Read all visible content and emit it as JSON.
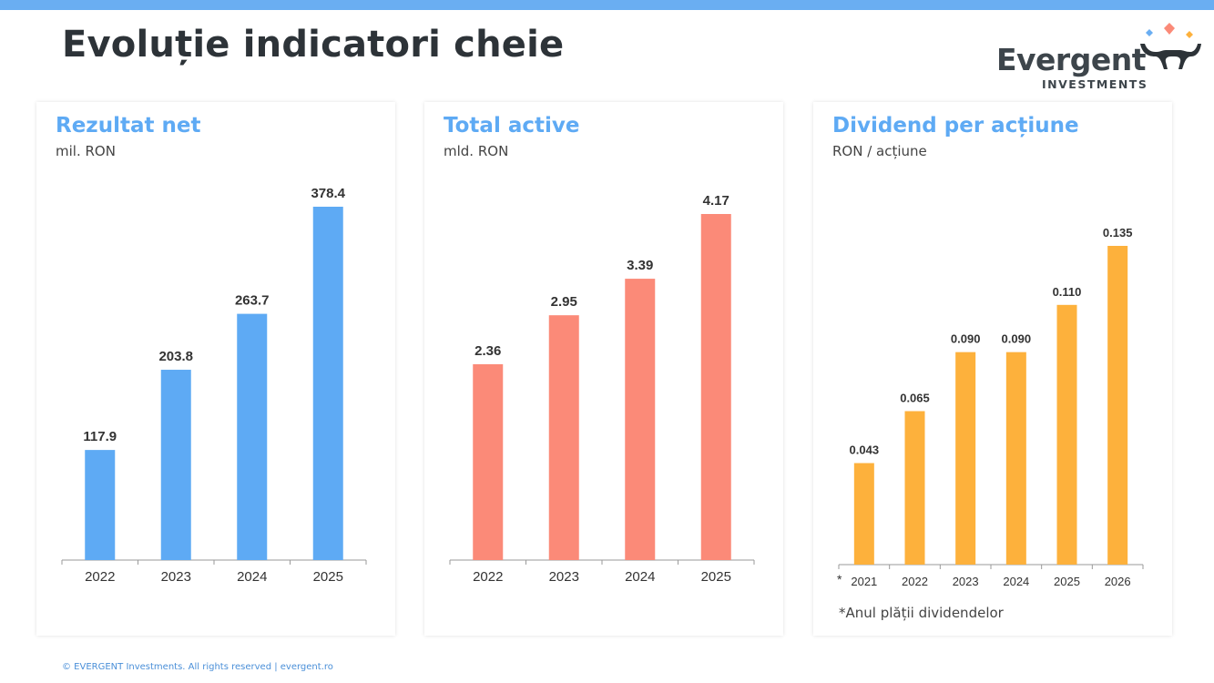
{
  "header": {
    "title": "Evoluție indicatori cheie"
  },
  "logo": {
    "name": "Evergent",
    "subtitle": "INVESTMENTS"
  },
  "colors": {
    "accent": "#6aaef2",
    "blue": "#5eaaf4",
    "salmon": "#fb8a78",
    "orange": "#fdb13c"
  },
  "chart_data": [
    {
      "type": "bar",
      "title": "Rezultat net",
      "unit": "mil. RON",
      "categories": [
        "2022",
        "2023",
        "2024",
        "2025"
      ],
      "values": [
        117.9,
        203.8,
        263.7,
        378.4
      ],
      "value_labels": [
        "117.9",
        "203.8",
        "263.7",
        "378.4"
      ],
      "axis_marker": "",
      "footnote": "",
      "color": "#5eaaf4"
    },
    {
      "type": "bar",
      "title": "Total active",
      "unit": "mld. RON",
      "categories": [
        "2022",
        "2023",
        "2024",
        "2025"
      ],
      "values": [
        2.36,
        2.95,
        3.39,
        4.17
      ],
      "value_labels": [
        "2.36",
        "2.95",
        "3.39",
        "4.17"
      ],
      "axis_marker": "",
      "footnote": "",
      "color": "#fb8a78"
    },
    {
      "type": "bar",
      "title": "Dividend per acțiune",
      "unit": "RON / acțiune",
      "categories": [
        "2021",
        "2022",
        "2023",
        "2024",
        "2025",
        "2026"
      ],
      "values": [
        0.043,
        0.065,
        0.09,
        0.09,
        0.11,
        0.135
      ],
      "value_labels": [
        "0.043",
        "0.065",
        "0.090",
        "0.090",
        "0.110",
        "0.135"
      ],
      "axis_marker": "*",
      "footnote": "*Anul plății dividendelor",
      "color": "#fdb13c"
    }
  ],
  "footer": {
    "text": "© EVERGENT Investments. All rights reserved  |  evergent.ro"
  }
}
